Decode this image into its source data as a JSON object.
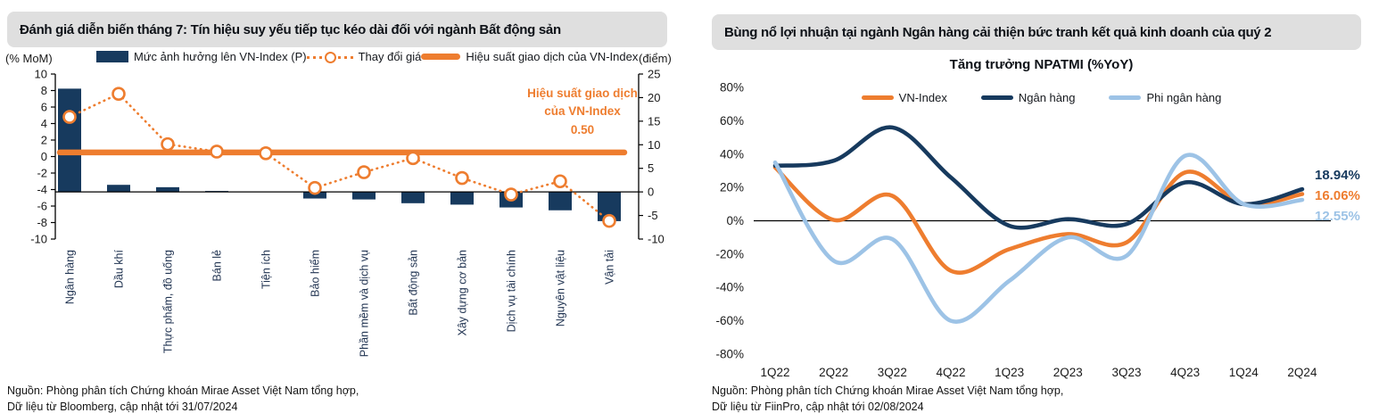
{
  "colors": {
    "navy": "#173A5E",
    "orange": "#EE7D2F",
    "light_blue": "#9DC3E6",
    "header_bg": "#DFDFDF",
    "axis_text": "#1A1A1A"
  },
  "left_panel": {
    "title": "Đánh giá diễn biến tháng 7: Tín hiệu suy yếu tiếp tục kéo dài đối với ngành Bất động sản",
    "axis_left_unit": "(% MoM)",
    "axis_right_unit": "(điểm)",
    "annotation": {
      "line1": "Hiệu suất giao dịch",
      "line2": "của VN-Index",
      "value": "0.50"
    },
    "source_line1": "Nguồn: Phòng phân tích Chứng khoán Mirae Asset Việt Nam tổng hợp,",
    "source_line2": "Dữ liệu từ Bloomberg, cập nhật tới 31/07/2024"
  },
  "right_panel": {
    "title": "Bùng nổ lợi nhuận tại ngành Ngân hàng cải thiện bức tranh kết quả kinh doanh của quý 2",
    "chart_title": "Tăng trưởng NPATMI (%YoY)",
    "source_line1": "Nguồn: Phòng phân tích Chứng khoán Mirae Asset Việt Nam tổng hợp,",
    "source_line2": "Dữ liệu từ FiinPro, cập nhật tới 02/08/2024"
  },
  "chart_data": [
    {
      "type": "bar+line combo",
      "title": "Đánh giá diễn biến tháng 7: Tín hiệu suy yếu tiếp tục kéo dài đối với ngành Bất động sản",
      "categories": [
        "Ngân hàng",
        "Dầu khí",
        "Thực phẩm, đồ uống",
        "Bán lẻ",
        "Tiện ích",
        "Bảo hiểm",
        "Phần mềm và dịch vụ",
        "Bất động sản",
        "Xây dựng cơ bản",
        "Dịch vụ tài chính",
        "Nguyên vật liệu",
        "Vận tải"
      ],
      "series": [
        {
          "name": "Mức ảnh hưởng lên VN-Index (P)",
          "type": "bar",
          "axis": "right",
          "unit": "điểm",
          "color": "navy",
          "values": [
            21.9,
            1.5,
            1.0,
            0.2,
            0,
            -1.4,
            -1.6,
            -2.4,
            -2.7,
            -3.3,
            -3.9,
            -6.2
          ]
        },
        {
          "name": "Thay đổi giá",
          "type": "dotted-line-markers",
          "axis": "left",
          "unit": "% MoM",
          "color": "orange",
          "values": [
            4.8,
            7.6,
            1.5,
            0.6,
            0.4,
            -3.8,
            -1.9,
            -0.2,
            -2.6,
            -4.6,
            -3.0,
            -7.8
          ]
        },
        {
          "name": "Hiệu suất giao dịch của VN-Index",
          "type": "horizontal-line",
          "axis": "left",
          "color": "orange",
          "value": 0.5
        }
      ],
      "ylim_left": [
        -10,
        10
      ],
      "ytick_step_left": 2,
      "ylim_right": [
        -10,
        25
      ],
      "ytick_step_right": 5,
      "grid": false
    },
    {
      "type": "line",
      "title": "Tăng trưởng NPATMI (%YoY)",
      "x": [
        "1Q22",
        "2Q22",
        "3Q22",
        "4Q22",
        "1Q23",
        "2Q23",
        "3Q23",
        "4Q23",
        "1Q24",
        "2Q24"
      ],
      "series": [
        {
          "name": "VN-Index",
          "color": "orange",
          "end_label": "16.06%",
          "values": [
            32,
            0.5,
            15,
            -30,
            -17,
            -8,
            -13,
            29,
            10,
            16.06
          ]
        },
        {
          "name": "Ngân hàng",
          "color": "navy",
          "end_label": "18.94%",
          "values": [
            33,
            36,
            56,
            26,
            -3,
            1,
            -2,
            23,
            10,
            18.94
          ]
        },
        {
          "name": "Phi ngân hàng",
          "color": "light_blue",
          "end_label": "12.55%",
          "values": [
            35,
            -24,
            -11,
            -60,
            -36,
            -10,
            -21,
            39,
            10,
            12.55
          ]
        }
      ],
      "ylim": [
        -80,
        80
      ],
      "ytick_step": 20,
      "legend_position": "top-center",
      "grid": false
    }
  ]
}
